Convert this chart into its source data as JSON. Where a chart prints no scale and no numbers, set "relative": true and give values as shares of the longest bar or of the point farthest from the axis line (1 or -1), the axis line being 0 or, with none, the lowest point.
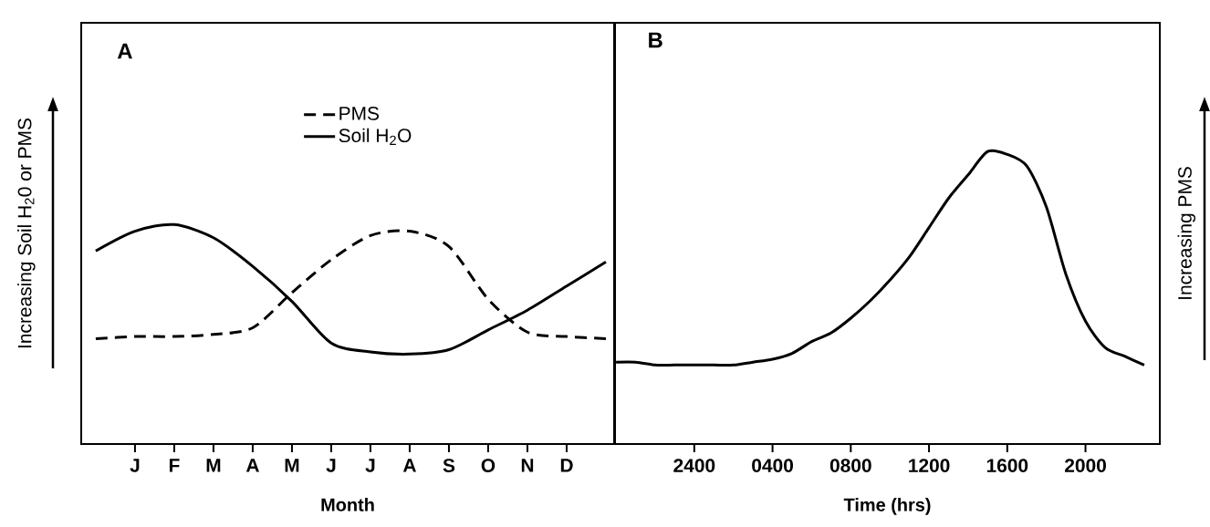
{
  "chart_data": [
    {
      "type": "line",
      "title": "A",
      "xlabel": "Month",
      "ylabel": "Increasing Soil H$_{2}$0 or PMS",
      "relative": true,
      "tick_labels": "x",
      "legend": "top",
      "marker": "none",
      "categories": [
        null,
        "J",
        "F",
        "M",
        "A",
        "M",
        "J",
        "J",
        "A",
        "S",
        "O",
        "N",
        "D",
        null
      ],
      "series": [
        {
          "name": "PMS",
          "color": "#000000",
          "line_style": "dashed",
          "values": [
            0.48,
            0.49,
            0.49,
            0.5,
            0.53,
            0.69,
            0.84,
            0.95,
            0.97,
            0.9,
            0.66,
            0.51,
            0.49,
            0.48
          ]
        },
        {
          "name": "Soil H$_{2}$O",
          "color": "#000000",
          "line_style": "solid",
          "values": [
            0.88,
            0.97,
            1.0,
            0.94,
            0.81,
            0.65,
            0.46,
            0.42,
            0.41,
            0.43,
            0.52,
            0.61,
            0.72,
            0.83
          ]
        }
      ]
    },
    {
      "type": "line",
      "title": "B",
      "xlabel": "Time (hrs)",
      "ylabel": "Increasing PMS",
      "relative": true,
      "tick_labels": "x",
      "marker": "none",
      "categories": [
        null,
        null,
        null,
        null,
        "2400",
        null,
        null,
        null,
        "0400",
        null,
        null,
        null,
        "0800",
        null,
        null,
        null,
        "1200",
        null,
        null,
        null,
        "1600",
        null,
        null,
        null,
        "2000",
        null,
        null,
        null
      ],
      "series": [
        {
          "color": "#000000",
          "line_style": "solid",
          "values": [
            0.28,
            0.28,
            0.27,
            0.27,
            0.27,
            0.27,
            0.27,
            0.28,
            0.29,
            0.31,
            0.35,
            0.38,
            0.43,
            0.49,
            0.56,
            0.64,
            0.74,
            0.84,
            0.92,
            1.0,
            0.99,
            0.95,
            0.81,
            0.58,
            0.42,
            0.33,
            0.3,
            0.27
          ]
        }
      ]
    }
  ]
}
